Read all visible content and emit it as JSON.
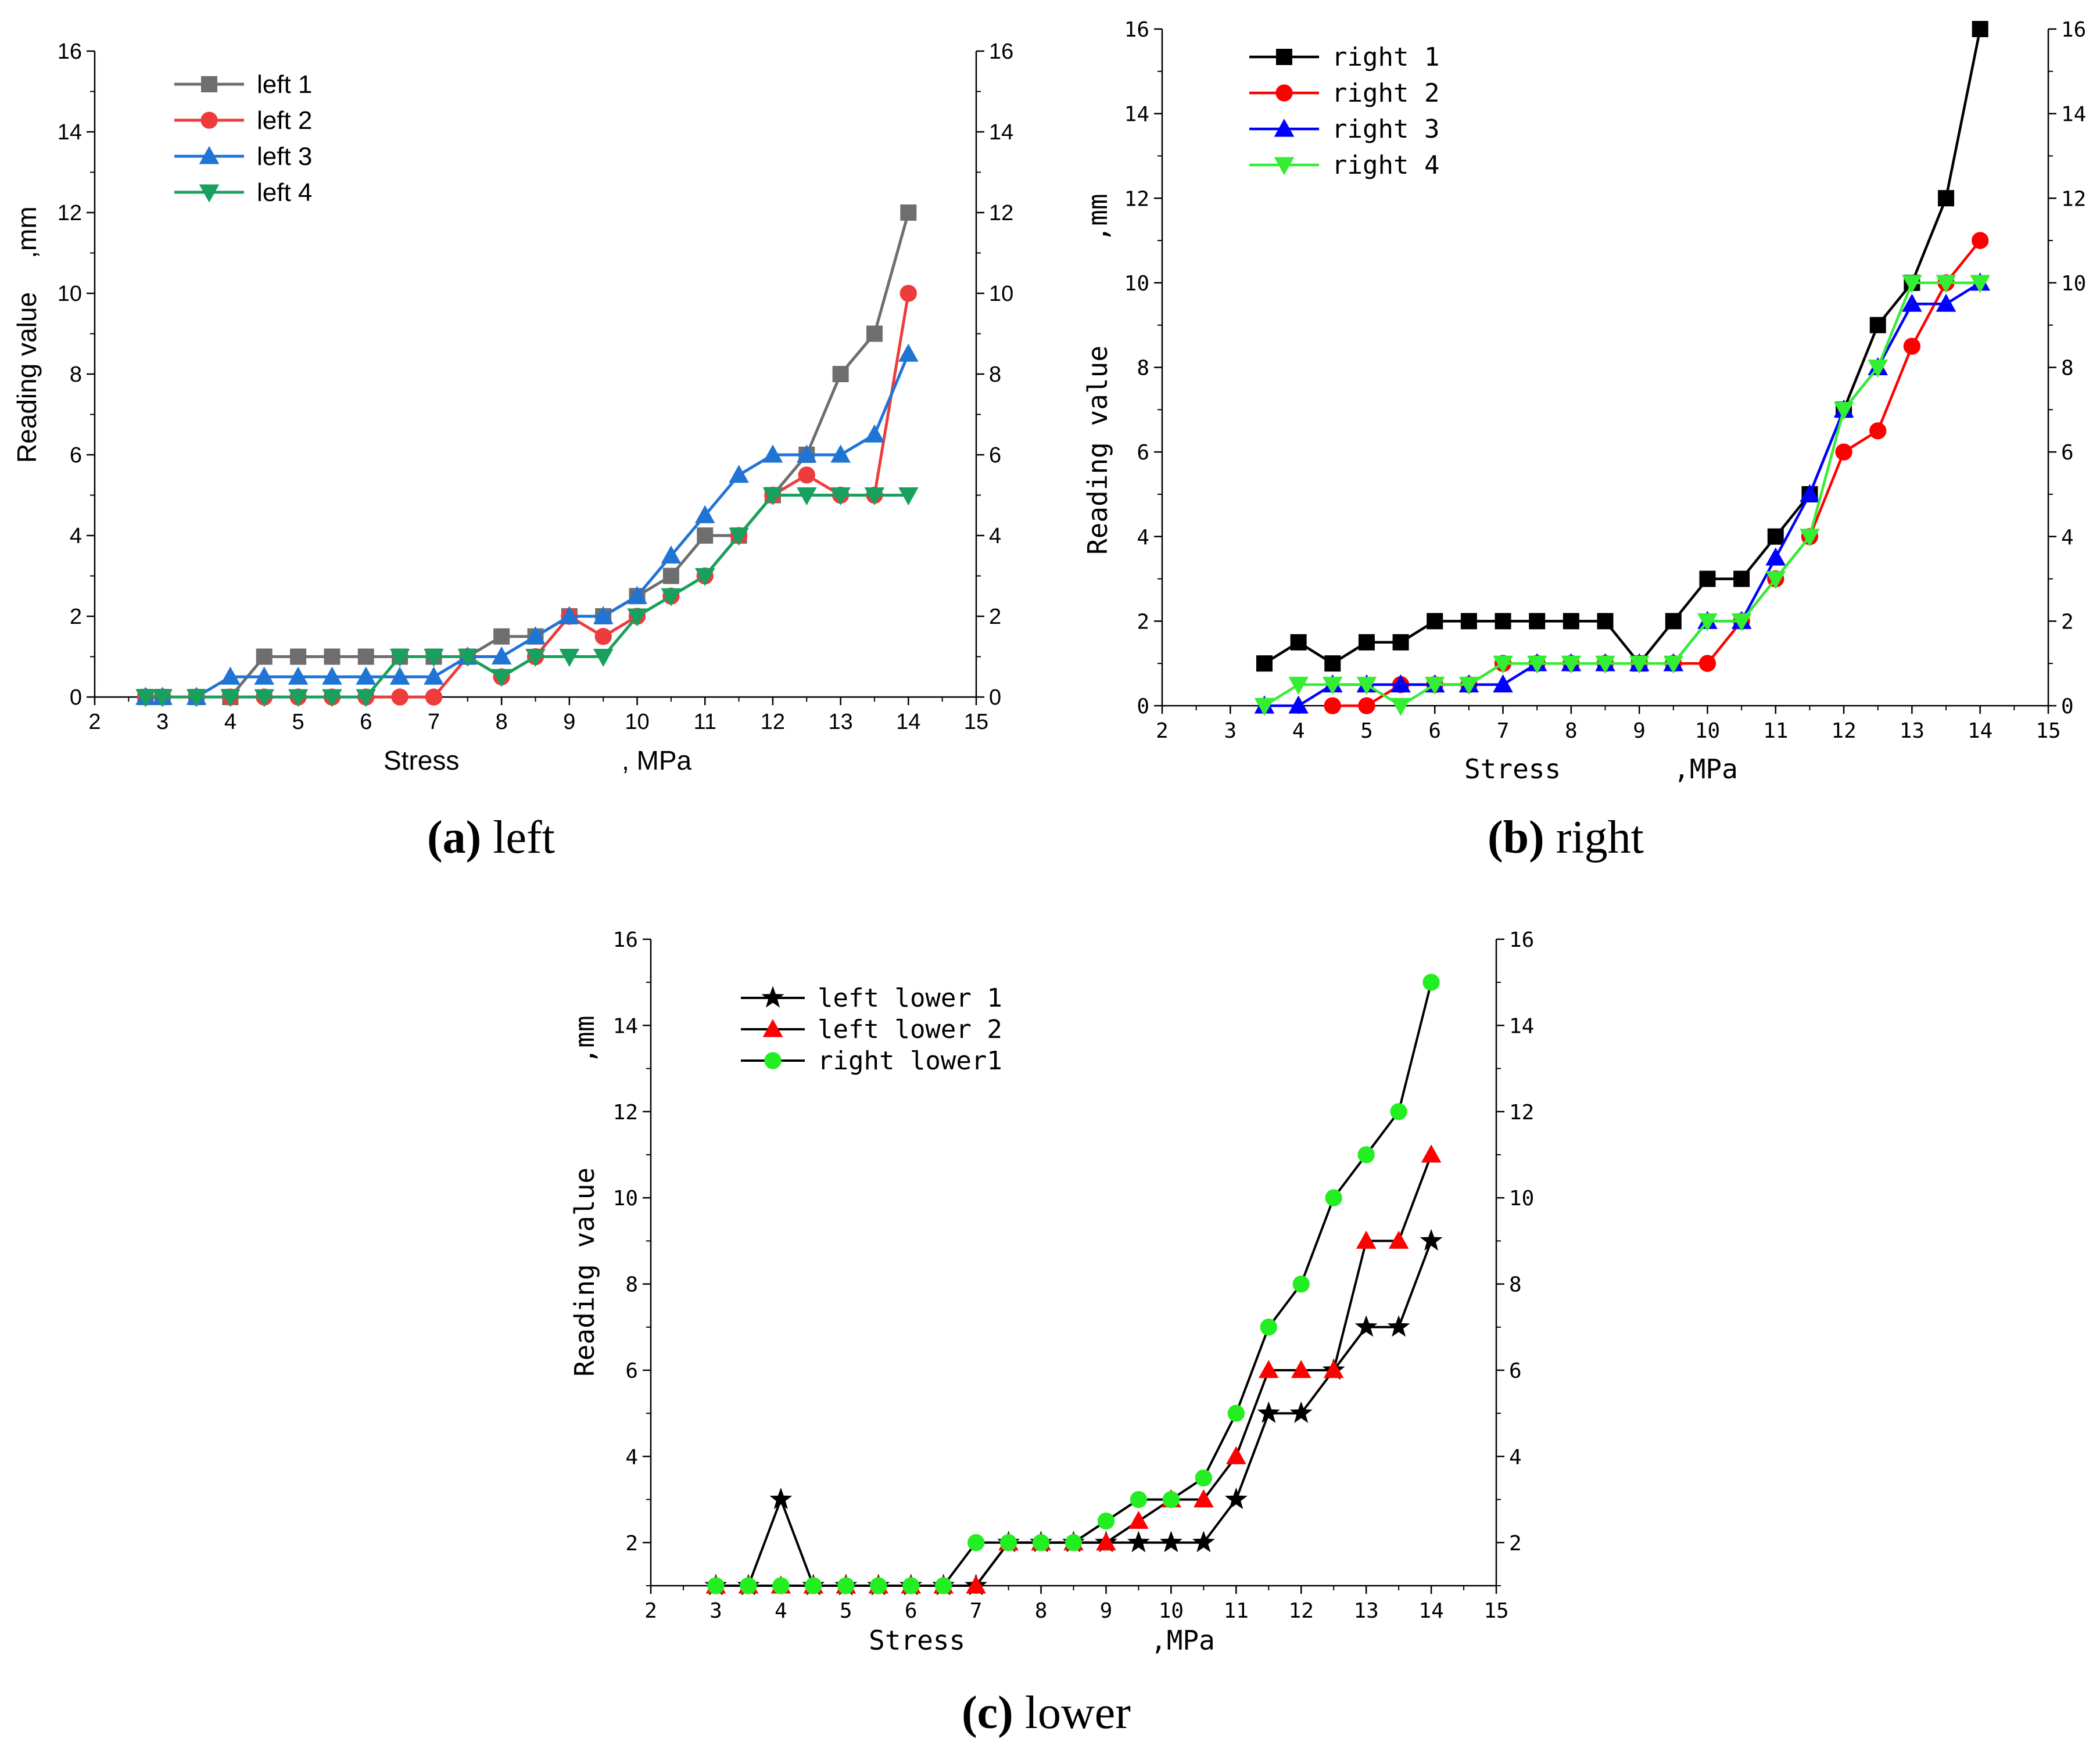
{
  "captions": [
    {
      "letter": "a",
      "text": " left"
    },
    {
      "letter": "b",
      "text": " right"
    },
    {
      "letter": "c",
      "text": " lower"
    }
  ],
  "chart_data": [
    {
      "type": "line",
      "title": "",
      "xlabel": "Stress",
      "xlabel_unit": ", MPa",
      "ylabel": "Reading value",
      "ylabel_unit": ",mm",
      "xlim": [
        2,
        15
      ],
      "ylim": [
        0,
        16
      ],
      "xticks": [
        "2",
        "3",
        "4",
        "5",
        "6",
        "7",
        "8",
        "9",
        "10",
        "11",
        "12",
        "13",
        "14",
        "15"
      ],
      "yticks": [
        "0",
        "2",
        "4",
        "6",
        "8",
        "10",
        "12",
        "14",
        "16"
      ],
      "grid": false,
      "legend_position": "top-left",
      "series": [
        {
          "name": "left 1",
          "color": "#6e6e6e",
          "marker": "square",
          "x": [
            2.75,
            3,
            3.5,
            4,
            4.5,
            5,
            5.5,
            6,
            6.5,
            7,
            7.5,
            8,
            8.5,
            9,
            9.5,
            10,
            10.5,
            11,
            11.5,
            12,
            12.5,
            13,
            13.5,
            14
          ],
          "y": [
            0,
            0,
            0,
            0,
            1,
            1,
            1,
            1,
            1,
            1,
            1,
            1.5,
            1.5,
            2,
            2,
            2.5,
            3,
            4,
            4,
            5,
            6,
            8,
            9,
            12
          ]
        },
        {
          "name": "left 2",
          "color": "#ee3b3b",
          "marker": "circle",
          "x": [
            2.75,
            3,
            3.5,
            4,
            4.5,
            5,
            5.5,
            6,
            6.5,
            7,
            7.5,
            8,
            8.5,
            9,
            9.5,
            10,
            10.5,
            11,
            11.5,
            12,
            12.5,
            13,
            13.5,
            14
          ],
          "y": [
            0,
            0,
            0,
            0,
            0,
            0,
            0,
            0,
            0,
            0,
            1,
            0.5,
            1,
            2,
            1.5,
            2,
            2.5,
            3,
            4,
            5,
            5.5,
            5,
            5,
            10
          ]
        },
        {
          "name": "left 3",
          "color": "#1f74d4",
          "marker": "triangle-up",
          "x": [
            2.75,
            3,
            3.5,
            4,
            4.5,
            5,
            5.5,
            6,
            6.5,
            7,
            7.5,
            8,
            8.5,
            9,
            9.5,
            10,
            10.5,
            11,
            11.5,
            12,
            12.5,
            13,
            13.5,
            14
          ],
          "y": [
            0,
            0,
            0,
            0.5,
            0.5,
            0.5,
            0.5,
            0.5,
            0.5,
            0.5,
            1,
            1,
            1.5,
            2,
            2,
            2.5,
            3.5,
            4.5,
            5.5,
            6,
            6,
            6,
            6.5,
            8.5
          ]
        },
        {
          "name": "left 4",
          "color": "#17a05e",
          "marker": "triangle-down",
          "x": [
            2.75,
            3,
            3.5,
            4,
            4.5,
            5,
            5.5,
            6,
            6.5,
            7,
            7.5,
            8,
            8.5,
            9,
            9.5,
            10,
            10.5,
            11,
            11.5,
            12,
            12.5,
            13,
            13.5,
            14
          ],
          "y": [
            0,
            0,
            0,
            0,
            0,
            0,
            0,
            0,
            1,
            1,
            1,
            0.5,
            1,
            1,
            1,
            2,
            2.5,
            3,
            4,
            5,
            5,
            5,
            5,
            5
          ]
        }
      ]
    },
    {
      "type": "line",
      "title": "",
      "xlabel": "Stress",
      "xlabel_unit": ",MPa",
      "ylabel": "Reading value",
      "ylabel_unit": ",mm",
      "xlim": [
        2,
        15
      ],
      "ylim": [
        0,
        16
      ],
      "xticks": [
        "2",
        "3",
        "4",
        "5",
        "6",
        "7",
        "8",
        "9",
        "10",
        "11",
        "12",
        "13",
        "14",
        "15"
      ],
      "yticks": [
        "0",
        "2",
        "4",
        "6",
        "8",
        "10",
        "12",
        "14",
        "16"
      ],
      "grid": false,
      "legend_position": "top-left",
      "series": [
        {
          "name": "right 1",
          "color": "#000000",
          "marker": "square",
          "x": [
            3.5,
            4,
            4.5,
            5,
            5.5,
            6,
            6.5,
            7,
            7.5,
            8,
            8.5,
            9,
            9.5,
            10,
            10.5,
            11,
            11.5,
            12,
            12.5,
            13,
            13.5,
            14
          ],
          "y": [
            1,
            1.5,
            1,
            1.5,
            1.5,
            2,
            2,
            2,
            2,
            2,
            2,
            1,
            2,
            3,
            3,
            4,
            5,
            7,
            9,
            10,
            12,
            16
          ]
        },
        {
          "name": "right 2",
          "color": "#ff0000",
          "marker": "circle",
          "x": [
            4.5,
            5,
            5.5,
            6,
            6.5,
            7,
            7.5,
            8,
            8.5,
            9,
            9.5,
            10,
            10.5,
            11,
            11.5,
            12,
            12.5,
            13,
            13.5,
            14
          ],
          "y": [
            0,
            0,
            0.5,
            0.5,
            0.5,
            1,
            1,
            1,
            1,
            1,
            1,
            1,
            2,
            3,
            4,
            6,
            6.5,
            8.5,
            10,
            11
          ]
        },
        {
          "name": "right 3",
          "color": "#0000ff",
          "marker": "triangle-up",
          "x": [
            3.5,
            4,
            4.5,
            5,
            5.5,
            6,
            6.5,
            7,
            7.5,
            8,
            8.5,
            9,
            9.5,
            10,
            10.5,
            11,
            11.5,
            12,
            12.5,
            13,
            13.5,
            14
          ],
          "y": [
            0,
            0,
            0.5,
            0.5,
            0.5,
            0.5,
            0.5,
            0.5,
            1,
            1,
            1,
            1,
            1,
            2,
            2,
            3.5,
            5,
            7,
            8,
            9.5,
            9.5,
            10
          ]
        },
        {
          "name": "right 4",
          "color": "#33ee33",
          "marker": "triangle-down",
          "x": [
            3.5,
            4,
            4.5,
            5,
            5.5,
            6,
            6.5,
            7,
            7.5,
            8,
            8.5,
            9,
            9.5,
            10,
            10.5,
            11,
            11.5,
            12,
            12.5,
            13,
            13.5,
            14
          ],
          "y": [
            0,
            0.5,
            0.5,
            0.5,
            0,
            0.5,
            0.5,
            1,
            1,
            1,
            1,
            1,
            1,
            2,
            2,
            3,
            4,
            7,
            8,
            10,
            10,
            10
          ]
        }
      ]
    },
    {
      "type": "line",
      "title": "",
      "xlabel": "Stress",
      "xlabel_unit": ",MPa",
      "ylabel": "Reading value",
      "ylabel_unit": ",mm",
      "xlim": [
        2,
        15
      ],
      "ylim": [
        1,
        16
      ],
      "xticks": [
        "2",
        "3",
        "4",
        "5",
        "6",
        "7",
        "8",
        "9",
        "10",
        "11",
        "12",
        "13",
        "14",
        "15"
      ],
      "yticks": [
        "2",
        "4",
        "6",
        "8",
        "10",
        "12",
        "14",
        "16"
      ],
      "grid": false,
      "legend_position": "top-left",
      "series": [
        {
          "name": "left lower 1",
          "color": "#000000",
          "marker": "star",
          "x": [
            3,
            3.5,
            4,
            4.5,
            5,
            5.5,
            6,
            6.5,
            7,
            7.5,
            8,
            8.5,
            9,
            9.5,
            10,
            10.5,
            11,
            11.5,
            12,
            12.5,
            13,
            13.5,
            14
          ],
          "y": [
            1,
            1,
            3,
            1,
            1,
            1,
            1,
            1,
            1,
            2,
            2,
            2,
            2,
            2,
            2,
            2,
            3,
            5,
            5,
            6,
            7,
            7,
            9
          ]
        },
        {
          "name": "left lower 2",
          "color": "#ff0000",
          "marker": "triangle-up",
          "x": [
            3,
            3.5,
            4,
            4.5,
            5,
            5.5,
            6,
            6.5,
            7,
            7.5,
            8,
            8.5,
            9,
            9.5,
            10,
            10.5,
            11,
            11.5,
            12,
            12.5,
            13,
            13.5,
            14
          ],
          "y": [
            1,
            1,
            1,
            1,
            1,
            1,
            1,
            1,
            1,
            2,
            2,
            2,
            2,
            2.5,
            3,
            3,
            4,
            6,
            6,
            6,
            9,
            9,
            11
          ]
        },
        {
          "name": "right lower1",
          "color": "#22ee22",
          "marker": "circle",
          "x": [
            3,
            3.5,
            4,
            4.5,
            5,
            5.5,
            6,
            6.5,
            7,
            7.5,
            8,
            8.5,
            9,
            9.5,
            10,
            10.5,
            11,
            11.5,
            12,
            12.5,
            13,
            13.5,
            14
          ],
          "y": [
            1,
            1,
            1,
            1,
            1,
            1,
            1,
            1,
            2,
            2,
            2,
            2,
            2.5,
            3,
            3,
            3.5,
            5,
            7,
            8,
            10,
            11,
            12,
            15
          ]
        }
      ]
    }
  ]
}
